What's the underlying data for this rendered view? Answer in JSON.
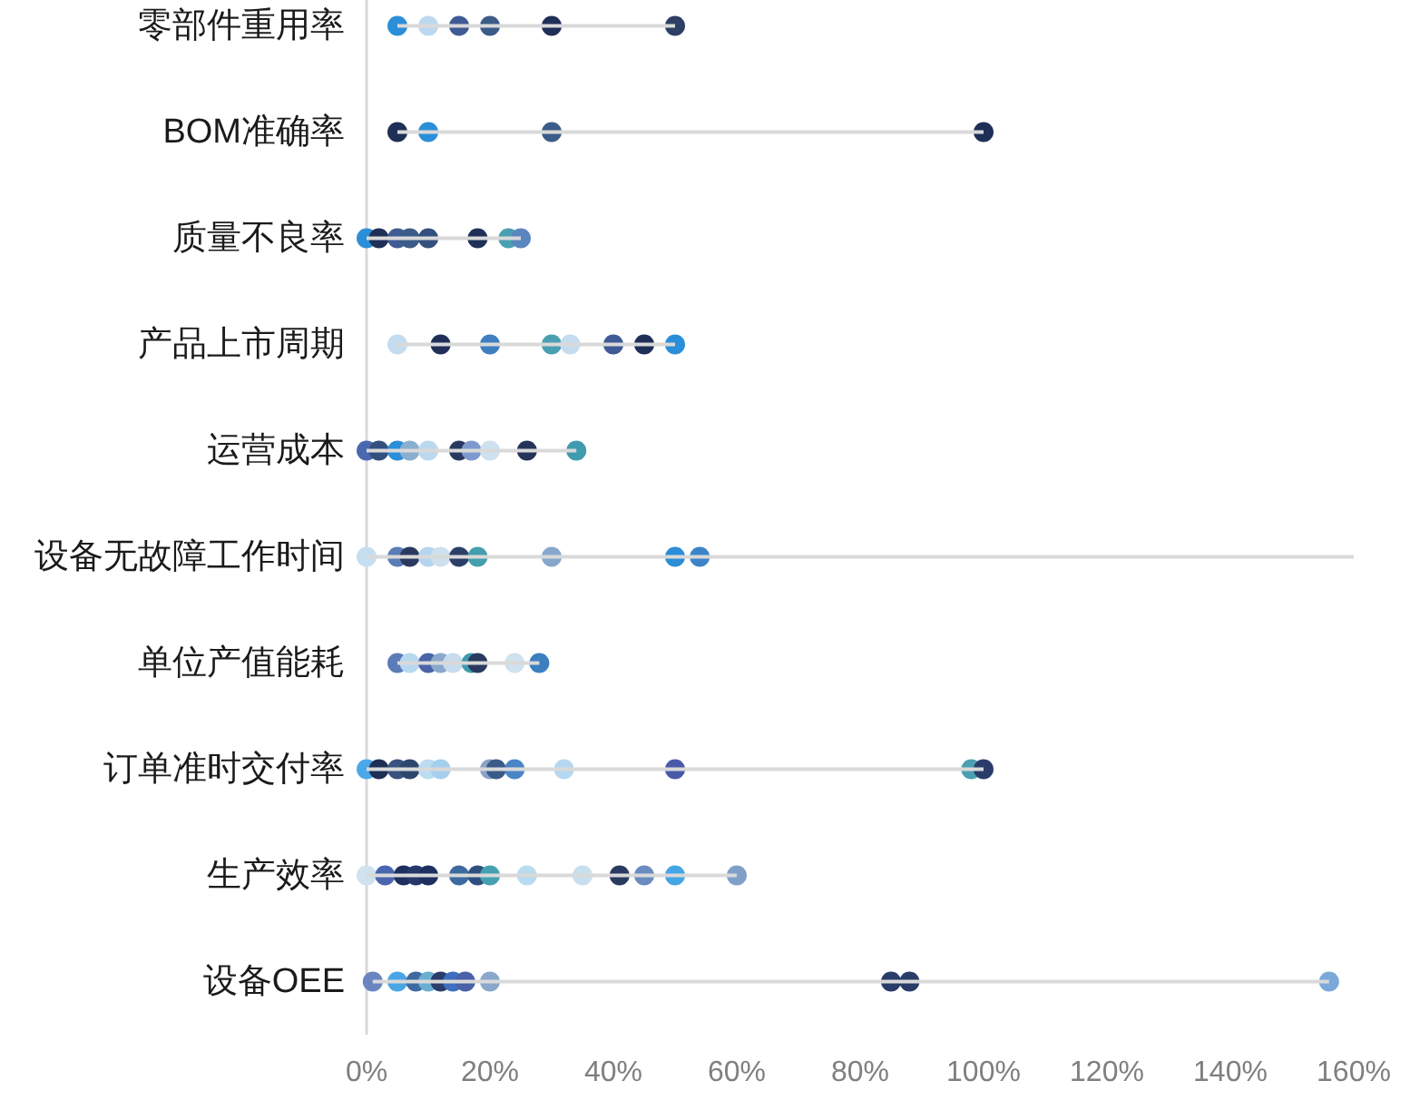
{
  "chart_data": {
    "type": "scatter",
    "orientation": "horizontal",
    "marker": "circle",
    "categories": [
      "零部件重用率",
      "BOM准确率",
      "质量不良率",
      "产品上市周期",
      "运营成本",
      "设备无故障工作时间",
      "单位产值能耗",
      "订单准时交付率",
      "生产效率",
      "设备OEE"
    ],
    "xlim": [
      0,
      160
    ],
    "xticks": [
      {
        "value": 0,
        "label": "0%"
      },
      {
        "value": 20,
        "label": "20%"
      },
      {
        "value": 40,
        "label": "40%"
      },
      {
        "value": 60,
        "label": "60%"
      },
      {
        "value": 80,
        "label": "80%"
      },
      {
        "value": 100,
        "label": "100%"
      },
      {
        "value": 120,
        "label": "120%"
      },
      {
        "value": 140,
        "label": "140%"
      },
      {
        "value": 160,
        "label": "160%"
      }
    ],
    "series": [
      {
        "type": "bar",
        "color": "#d9d9d9",
        "base": [
          5,
          5,
          0,
          5,
          0,
          0,
          5,
          0,
          0,
          1
        ],
        "values": [
          45,
          95,
          25,
          45,
          34,
          160,
          23,
          100,
          60,
          155
        ]
      },
      {
        "values": [
          5,
          5,
          0,
          5,
          0,
          0,
          5,
          0,
          0,
          1
        ],
        "colors": [
          "#2a8fd8",
          "#1f2f57",
          "#2a8fd8",
          "#c5dcef",
          "#4a68b0",
          "#c5dff0",
          "#5b7cb8",
          "#4aa8e8",
          "#cfe2ee",
          "#6a85c0"
        ]
      },
      {
        "values": [
          10,
          10,
          2,
          12,
          2,
          5,
          7,
          2,
          3,
          5
        ],
        "colors": [
          "#bcd8ee",
          "#2a8fd8",
          "#1f2f57",
          "#1f2f57",
          "#34507e",
          "#5b7db5",
          "#b8d8f0",
          "#1e2f55",
          "#4a66b0",
          "#4aa5e5"
        ]
      },
      {
        "values": [
          15,
          30,
          5,
          20,
          5,
          7,
          10,
          5,
          6,
          8
        ],
        "colors": [
          "#3f5a94",
          "#3b5c88",
          "#3f5a94",
          "#3f7fc0",
          "#2a8fd8",
          "#2a3a5f",
          "#4a63a8",
          "#3a527e",
          "#1e3060",
          "#3d6aa0"
        ]
      },
      {
        "values": [
          20,
          100,
          7,
          30,
          7,
          10,
          12,
          7,
          8,
          10
        ],
        "colors": [
          "#3b5c88",
          "#1f2f57",
          "#3b5c88",
          "#4a9fb0",
          "#8aaed0",
          "#b5d5ee",
          "#8aa8cc",
          "#2d4670",
          "#24386a",
          "#6aaed0"
        ]
      },
      {
        "values": [
          30,
          null,
          10,
          33,
          10,
          12,
          14,
          10,
          10,
          12
        ],
        "colors": [
          "#1f2f57",
          null,
          "#34507e",
          "#c5dcef",
          "#bcd8ee",
          "#cfe0ec",
          "#c8dced",
          "#bcdcf0",
          "#1e3060",
          "#2a3d6a"
        ]
      },
      {
        "values": [
          50,
          null,
          18,
          40,
          15,
          15,
          17,
          12,
          15,
          14
        ],
        "colors": [
          "#2e3f66",
          null,
          "#1f2f57",
          "#3f5a94",
          "#283a60",
          "#2c3f68",
          "#3f9bad",
          "#a6cfee",
          "#3d6aa0",
          "#3d6ec0"
        ]
      },
      {
        "values": [
          null,
          null,
          23,
          45,
          17,
          18,
          18,
          20,
          18,
          16
        ],
        "colors": [
          null,
          null,
          "#4a9fb0",
          "#1f2f57",
          "#7e9acd",
          "#449eae",
          "#2a3a5f",
          "#8aa3c6",
          "#2f4f80",
          "#4a60a8"
        ]
      },
      {
        "values": [
          null,
          null,
          25,
          50,
          20,
          30,
          24,
          21,
          20,
          20
        ],
        "colors": [
          null,
          null,
          "#5a86c0",
          "#2a8fd8",
          "#cfe0ee",
          "#87a7cc",
          "#cfe2ee",
          "#3a5a88",
          "#45a0b0",
          "#8aa8cc"
        ]
      },
      {
        "values": [
          null,
          null,
          null,
          null,
          26,
          50,
          28,
          24,
          26,
          85
        ],
        "colors": [
          null,
          null,
          null,
          null,
          "#253459",
          "#2b8ed6",
          "#3c7fc0",
          "#4a86c6",
          "#b8dcf0",
          "#2a3d6a"
        ]
      },
      {
        "values": [
          null,
          null,
          null,
          null,
          34,
          54,
          null,
          32,
          35,
          88
        ],
        "colors": [
          null,
          null,
          null,
          null,
          "#3f9bad",
          "#3c84c7",
          null,
          "#b5d8f0",
          "#c8e0ee",
          "#2a3d6a"
        ]
      },
      {
        "values": [
          null,
          null,
          null,
          null,
          null,
          null,
          null,
          50,
          41,
          156
        ],
        "colors": [
          null,
          null,
          null,
          null,
          null,
          null,
          null,
          "#4a5aa8",
          "#2a3a60",
          "#7aa8d8"
        ]
      },
      {
        "values": [
          null,
          null,
          null,
          null,
          null,
          null,
          null,
          98,
          45,
          null
        ],
        "colors": [
          null,
          null,
          null,
          null,
          null,
          null,
          null,
          "#4aa0b0",
          "#6a8cc0",
          null
        ]
      },
      {
        "values": [
          null,
          null,
          null,
          null,
          null,
          null,
          null,
          100,
          50,
          null
        ],
        "colors": [
          null,
          null,
          null,
          null,
          null,
          null,
          null,
          "#2a3d6a",
          "#45a5e5",
          null
        ]
      },
      {
        "values": [
          null,
          null,
          null,
          null,
          null,
          null,
          null,
          null,
          60,
          null
        ],
        "colors": [
          null,
          null,
          null,
          null,
          null,
          null,
          null,
          null,
          "#7f9fc8",
          null
        ]
      }
    ]
  }
}
